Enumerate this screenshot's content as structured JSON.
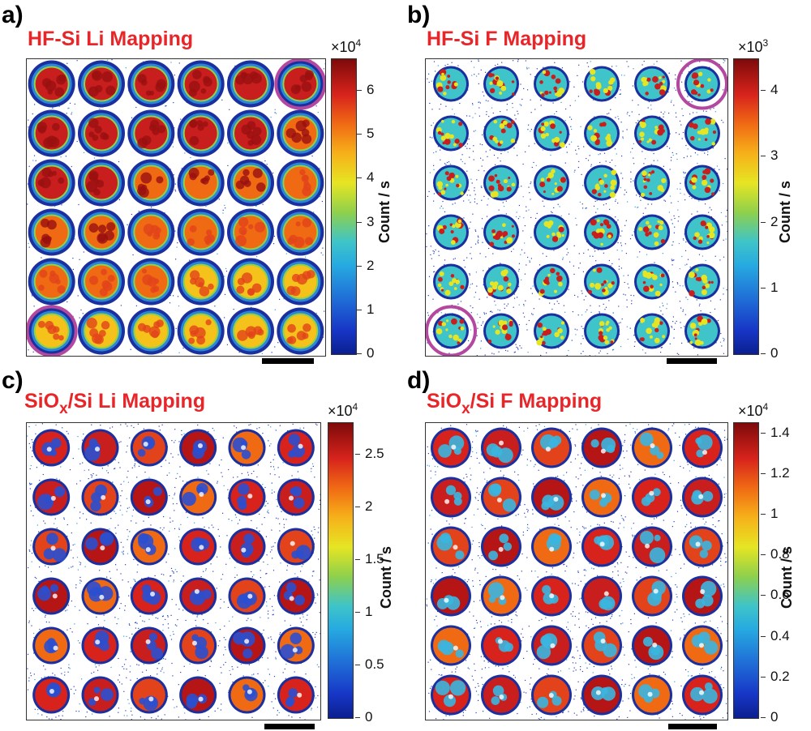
{
  "panels": [
    {
      "letter": "a)",
      "title_main": "HF-Si Li Mapping",
      "title_sub": "",
      "title_tail": "",
      "exponent_base": "×10",
      "exponent_power": "4",
      "colorbar_label": "Count / s",
      "ticks": [
        "6",
        "5",
        "4",
        "3",
        "2",
        "1",
        "0"
      ],
      "style": "full",
      "highlight": [
        "top-right",
        "bottom-left"
      ]
    },
    {
      "letter": "b)",
      "title_main": "HF-Si F Mapping",
      "title_sub": "",
      "title_tail": "",
      "exponent_base": "×10",
      "exponent_power": "3",
      "colorbar_label": "Count / s",
      "ticks": [
        "4",
        "3",
        "2",
        "1",
        "0"
      ],
      "style": "speckle",
      "highlight": [
        "top-right",
        "bottom-left"
      ]
    },
    {
      "letter": "c)",
      "title_main": "SiO",
      "title_sub": "x",
      "title_tail": "/Si Li Mapping",
      "exponent_base": "×10",
      "exponent_power": "4",
      "colorbar_label": "Count / s",
      "ticks": [
        "2.5",
        "2",
        "1.5",
        "1",
        "0.5",
        "0"
      ],
      "style": "patchy",
      "highlight": []
    },
    {
      "letter": "d)",
      "title_main": "SiO",
      "title_sub": "x",
      "title_tail": "/Si F Mapping",
      "exponent_base": "×10",
      "exponent_power": "4",
      "colorbar_label": "Count / s",
      "ticks": [
        "1.4",
        "1.2",
        "1",
        "0.8",
        "0.6",
        "0.4",
        "0.2",
        "0"
      ],
      "style": "patchy-f",
      "highlight": []
    }
  ],
  "colors": {
    "title_red": "#e8262a",
    "highlight_purple": "#b4479f"
  }
}
